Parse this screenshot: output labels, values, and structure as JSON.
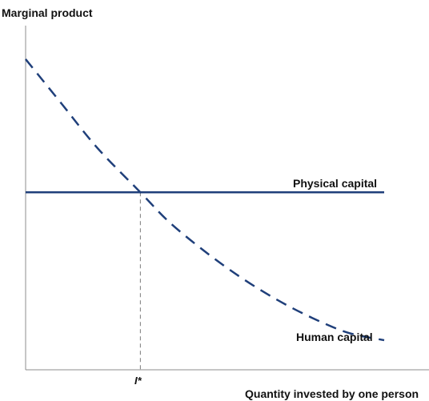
{
  "chart_data": {
    "type": "line",
    "title": "",
    "ylabel": "Marginal product",
    "xlabel": "Quantity invested by one person",
    "x_tick_labels": [
      "I*"
    ],
    "x_tick_values": [
      3.2
    ],
    "xlim": [
      0,
      10
    ],
    "ylim": [
      0,
      10
    ],
    "grid": false,
    "legend": "none",
    "series": [
      {
        "name": "Physical capital",
        "style": "solid",
        "color": "#1f3f7a",
        "x": [
          0,
          10
        ],
        "y": [
          4.8,
          4.8
        ]
      },
      {
        "name": "Human capital",
        "style": "dashed",
        "color": "#1f3f7a",
        "x": [
          0,
          1,
          2,
          3.2,
          4,
          5,
          6,
          7,
          8,
          9,
          10
        ],
        "y": [
          8.4,
          7.2,
          6.0,
          4.8,
          4.0,
          3.2,
          2.5,
          1.9,
          1.4,
          1.0,
          0.8
        ]
      }
    ],
    "annotations": [
      {
        "text": "I*",
        "style": "dashed drop line",
        "x": 3.2,
        "y": 4.8
      }
    ]
  }
}
